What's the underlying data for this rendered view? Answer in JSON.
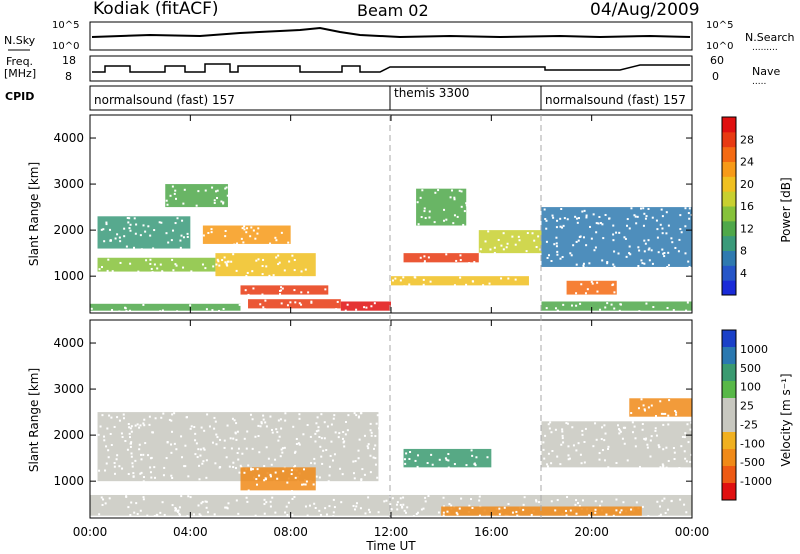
{
  "header": {
    "station": "Kodiak (fitACF)",
    "beam": "Beam 02",
    "date": "04/Aug/2009"
  },
  "panels": {
    "nsky_label": "N.Sky",
    "nsearch_label": "N.Search",
    "freq_label_1": "Freq.",
    "freq_label_2": "[MHz]",
    "nave_label": "Nave",
    "cpid_label": "CPID",
    "nsky_ticks": [
      "10^5",
      "10^0"
    ],
    "nsearch_ticks": [
      "10^5",
      "10^0"
    ],
    "freq_ticks": [
      "18",
      "8"
    ],
    "nave_ticks": [
      "60",
      "0"
    ]
  },
  "cpid_segments": [
    {
      "label": "normalsound (fast) 157",
      "start_hour": 0,
      "end_hour": 12
    },
    {
      "label": "themis 3300",
      "start_hour": 12,
      "end_hour": 18
    },
    {
      "label": "normalsound (fast) 157",
      "start_hour": 18,
      "end_hour": 24
    }
  ],
  "chart_data": [
    {
      "type": "heatmap",
      "name": "power",
      "ylabel": "Slant Range [km]",
      "xlabel": "Time UT",
      "xlim": [
        0,
        24
      ],
      "ylim": [
        200,
        4500
      ],
      "x_ticks": [
        "00:00",
        "04:00",
        "08:00",
        "12:00",
        "16:00",
        "20:00",
        "00:00"
      ],
      "y_ticks": [
        1000,
        2000,
        3000,
        4000
      ],
      "colorbar": {
        "label": "Power [dB]",
        "ticks": [
          "4",
          "8",
          "12",
          "16",
          "20",
          "24",
          "28"
        ],
        "range": [
          0,
          30
        ],
        "colors": [
          "#1a2bd8",
          "#2656c8",
          "#2f7ab0",
          "#3a9a7a",
          "#4fa84a",
          "#86c23a",
          "#c8d030",
          "#f0c020",
          "#f79a18",
          "#f46a12",
          "#e83a12",
          "#e01010"
        ]
      },
      "regions": [
        {
          "t0": 10.0,
          "t1": 12.0,
          "r0": 250,
          "r1": 450,
          "value": 28
        },
        {
          "t0": 6.3,
          "t1": 10.0,
          "r0": 300,
          "r1": 500,
          "value": 25
        },
        {
          "t0": 6.0,
          "t1": 9.5,
          "r0": 600,
          "r1": 800,
          "value": 27
        },
        {
          "t0": 12.5,
          "t1": 15.5,
          "r0": 1300,
          "r1": 1500,
          "value": 26
        },
        {
          "t0": 12.0,
          "t1": 17.5,
          "r0": 800,
          "r1": 1000,
          "value": 18
        },
        {
          "t0": 0.3,
          "t1": 5.0,
          "r0": 1100,
          "r1": 1400,
          "value": 14
        },
        {
          "t0": 0.3,
          "t1": 4.0,
          "r0": 1600,
          "r1": 2300,
          "value": 8
        },
        {
          "t0": 4.5,
          "t1": 8.0,
          "r0": 1700,
          "r1": 2100,
          "value": 20
        },
        {
          "t0": 5.0,
          "t1": 9.0,
          "r0": 1000,
          "r1": 1500,
          "value": 18
        },
        {
          "t0": 15.5,
          "t1": 18.0,
          "r0": 1500,
          "r1": 2000,
          "value": 16
        },
        {
          "t0": 18.0,
          "t1": 24.0,
          "r0": 1200,
          "r1": 2500,
          "value": 6
        },
        {
          "t0": 18.0,
          "t1": 24.0,
          "r0": 250,
          "r1": 450,
          "value": 10
        },
        {
          "t0": 0.0,
          "t1": 6.0,
          "r0": 250,
          "r1": 400,
          "value": 12
        },
        {
          "t0": 13.0,
          "t1": 15.0,
          "r0": 2100,
          "r1": 2900,
          "value": 12
        },
        {
          "t0": 3.0,
          "t1": 5.5,
          "r0": 2500,
          "r1": 3000,
          "value": 10
        },
        {
          "t0": 19.0,
          "t1": 21.0,
          "r0": 600,
          "r1": 900,
          "value": 24
        }
      ]
    },
    {
      "type": "heatmap",
      "name": "velocity",
      "ylabel": "Slant Range [km]",
      "xlabel": "Time UT",
      "xlim": [
        0,
        24
      ],
      "ylim": [
        200,
        4500
      ],
      "x_ticks": [
        "00:00",
        "04:00",
        "08:00",
        "12:00",
        "16:00",
        "20:00",
        "00:00"
      ],
      "y_ticks": [
        1000,
        2000,
        3000,
        4000
      ],
      "colorbar": {
        "label": "Velocity [m s⁻¹]",
        "ticks": [
          "1000",
          "500",
          "100",
          "25",
          "-25",
          "-100",
          "-500",
          "-1000"
        ],
        "colors": [
          "#1a40c8",
          "#2a78b0",
          "#3a9a70",
          "#58b848",
          "#c8c8c0",
          "#c8c8c0",
          "#f0b020",
          "#f08a18",
          "#ee5a14",
          "#e01010"
        ]
      },
      "regions": [
        {
          "t0": 0.3,
          "t1": 11.5,
          "r0": 1000,
          "r1": 2500,
          "value": 0
        },
        {
          "t0": 6.0,
          "t1": 9.0,
          "r0": 800,
          "r1": 1300,
          "value": -400
        },
        {
          "t0": 12.5,
          "t1": 16.0,
          "r0": 1300,
          "r1": 1700,
          "value": 300
        },
        {
          "t0": 18.0,
          "t1": 24.0,
          "r0": 1300,
          "r1": 2300,
          "value": 0
        },
        {
          "t0": 21.5,
          "t1": 24.0,
          "r0": 2400,
          "r1": 2800,
          "value": -300
        },
        {
          "t0": 0.0,
          "t1": 24.0,
          "r0": 250,
          "r1": 700,
          "value": 0
        },
        {
          "t0": 14.0,
          "t1": 22.0,
          "r0": 250,
          "r1": 450,
          "value": -150
        }
      ]
    }
  ]
}
